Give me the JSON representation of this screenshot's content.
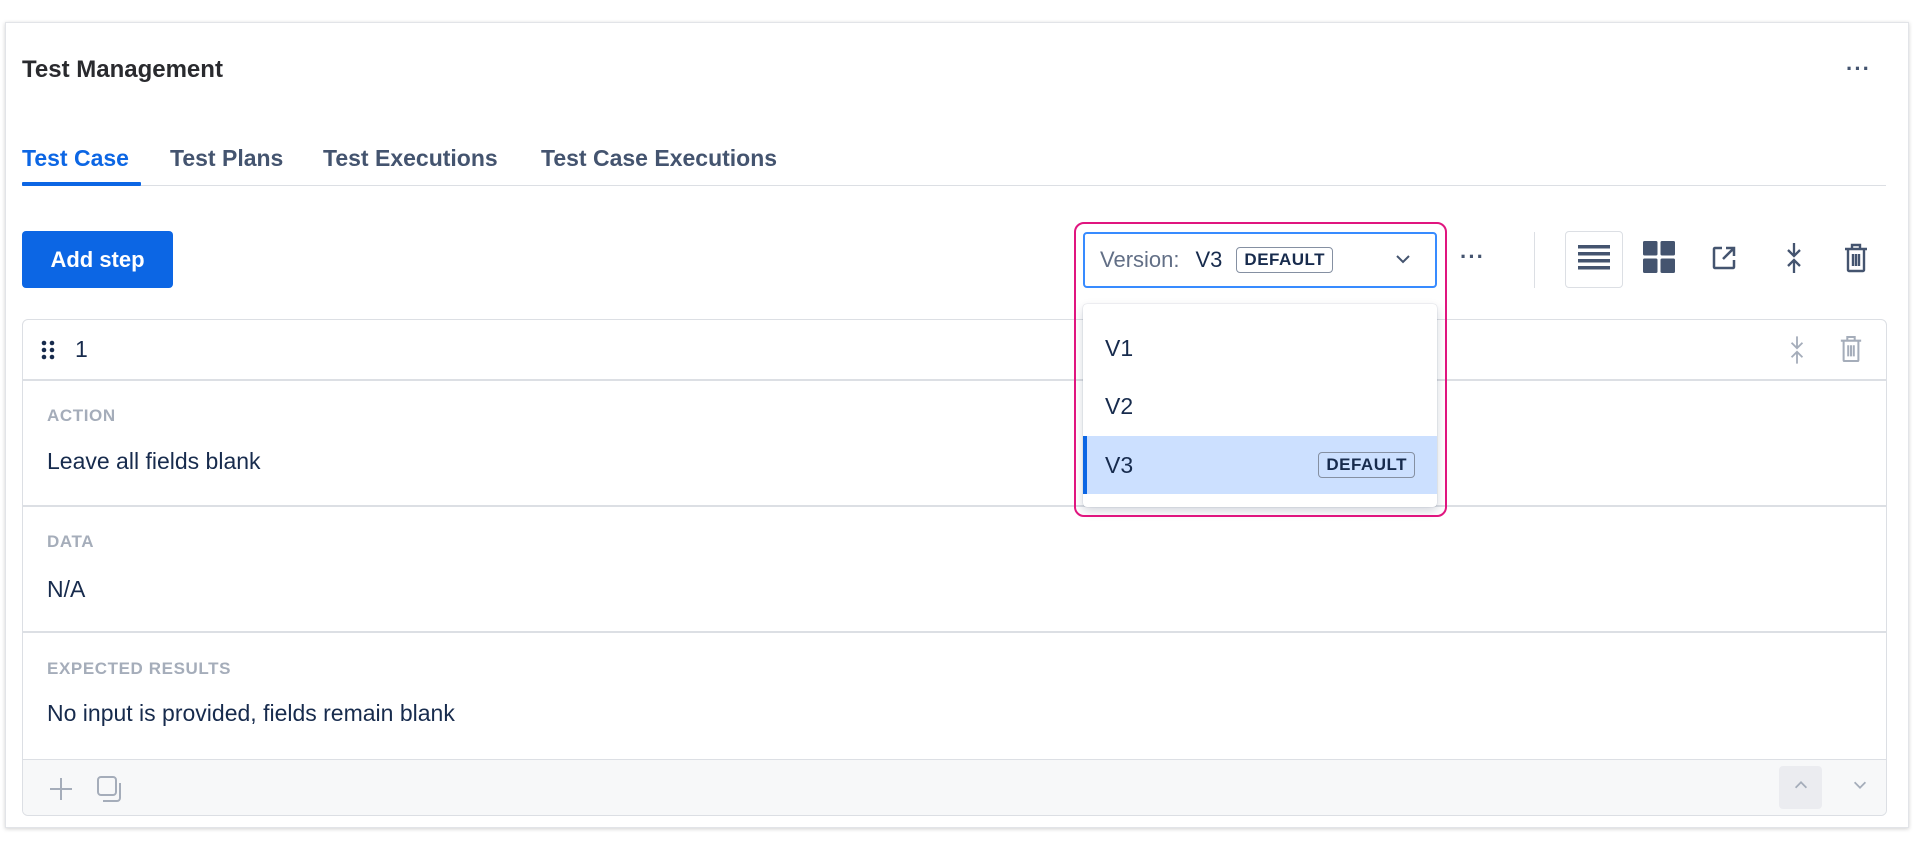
{
  "header": {
    "title": "Test Management",
    "more": "···"
  },
  "tabs": [
    {
      "label": "Test Case",
      "active": true
    },
    {
      "label": "Test Plans"
    },
    {
      "label": "Test Executions"
    },
    {
      "label": "Test Case Executions"
    }
  ],
  "toolbar": {
    "add_step": "Add step",
    "version_label": "Version:",
    "version_value": "V3",
    "version_badge": "DEFAULT",
    "more": "···"
  },
  "version_menu": {
    "options": [
      {
        "label": "V1"
      },
      {
        "label": "V2"
      },
      {
        "label": "V3",
        "badge": "DEFAULT",
        "selected": true
      }
    ]
  },
  "step": {
    "number": "1",
    "fields": [
      {
        "label": "ACTION",
        "value": "Leave all fields blank"
      },
      {
        "label": "DATA",
        "value": "N/A"
      },
      {
        "label": "EXPECTED RESULTS",
        "value": "No input is provided, fields remain blank"
      }
    ]
  },
  "colors": {
    "accent": "#0c66e4",
    "highlight": "#e0157f",
    "selected_bg": "#cce0ff"
  }
}
